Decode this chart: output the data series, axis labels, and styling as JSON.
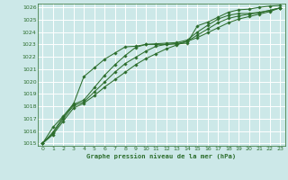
{
  "title": "Graphe pression niveau de la mer (hPa)",
  "background_color": "#cce8e8",
  "plot_bg_color": "#cce8e8",
  "grid_color": "#ffffff",
  "line_color": "#2d6e2d",
  "xlim": [
    -0.5,
    23.5
  ],
  "ylim": [
    1014.8,
    1026.3
  ],
  "xticks": [
    0,
    1,
    2,
    3,
    4,
    5,
    6,
    7,
    8,
    9,
    10,
    11,
    12,
    13,
    14,
    15,
    16,
    17,
    18,
    19,
    20,
    21,
    22,
    23
  ],
  "yticks": [
    1015,
    1016,
    1017,
    1018,
    1019,
    1020,
    1021,
    1022,
    1023,
    1024,
    1025,
    1026
  ],
  "series": [
    [
      1015.0,
      1016.3,
      1017.2,
      1018.2,
      1020.4,
      1021.1,
      1021.8,
      1022.3,
      1022.8,
      1022.85,
      1023.0,
      1023.0,
      1023.0,
      1023.05,
      1023.1,
      1024.5,
      1024.8,
      1025.2,
      1025.6,
      1025.8,
      1025.85,
      1026.0,
      1026.1,
      1026.15
    ],
    [
      1015.0,
      1015.9,
      1017.15,
      1018.15,
      1018.5,
      1019.5,
      1020.5,
      1021.35,
      1022.1,
      1022.75,
      1023.0,
      1023.05,
      1023.1,
      1023.15,
      1023.35,
      1024.0,
      1024.55,
      1025.05,
      1025.35,
      1025.5,
      1025.5,
      1025.6,
      1025.75,
      1025.95
    ],
    [
      1015.0,
      1015.8,
      1017.0,
      1018.05,
      1018.35,
      1019.15,
      1019.95,
      1020.75,
      1021.45,
      1021.95,
      1022.45,
      1022.85,
      1023.0,
      1023.05,
      1023.25,
      1023.75,
      1024.25,
      1024.75,
      1025.1,
      1025.3,
      1025.45,
      1025.55,
      1025.75,
      1025.95
    ],
    [
      1015.0,
      1015.7,
      1016.8,
      1017.85,
      1018.25,
      1018.85,
      1019.55,
      1020.15,
      1020.75,
      1021.35,
      1021.85,
      1022.25,
      1022.65,
      1022.95,
      1023.25,
      1023.55,
      1023.95,
      1024.35,
      1024.75,
      1025.05,
      1025.25,
      1025.45,
      1025.65,
      1025.95
    ]
  ]
}
